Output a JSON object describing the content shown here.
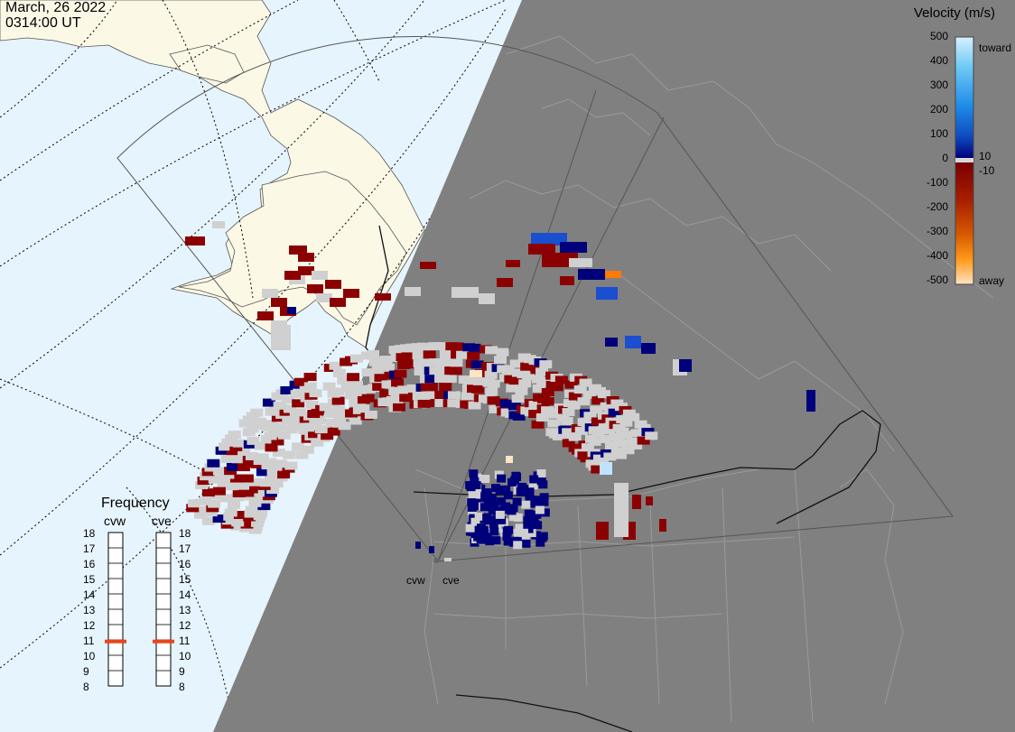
{
  "header": {
    "date": "March, 26 2022",
    "time": "0314:00 UT"
  },
  "colors": {
    "ocean": "#e6f4fd",
    "land_day": "#fbf8e6",
    "night": "#808080",
    "fov_outline": "#555555",
    "scatter_ground": "#d0d0d0",
    "radar_marker": "#666666"
  },
  "velocity_scale": {
    "title": "Velocity (m/s)",
    "ticks": [
      "500",
      "400",
      "300",
      "200",
      "100",
      "0",
      "-100",
      "-200",
      "-300",
      "-400",
      "-500"
    ],
    "inner_labels": [
      "10",
      "-10"
    ],
    "toward_label": "toward",
    "away_label": "away",
    "gradient_stops": [
      "#d6f0ff",
      "#6fcaf5",
      "#1e8be8",
      "#0f4cc0",
      "#00007a",
      "#7a0000",
      "#a81e00",
      "#d85a00",
      "#ff9a1a",
      "#ffe3c4"
    ]
  },
  "frequency_panel": {
    "title": "Frequency",
    "radars": [
      "cvw",
      "cve"
    ],
    "scale": [
      "18",
      "17",
      "16",
      "15",
      "14",
      "13",
      "12",
      "11",
      "10",
      "9",
      "8"
    ],
    "marker_color": "#e8441a",
    "readings_mhz": {
      "cvw": 10.9,
      "cve": 10.9
    }
  },
  "radar_sites": [
    {
      "code": "cvw"
    },
    {
      "code": "cve"
    }
  ]
}
